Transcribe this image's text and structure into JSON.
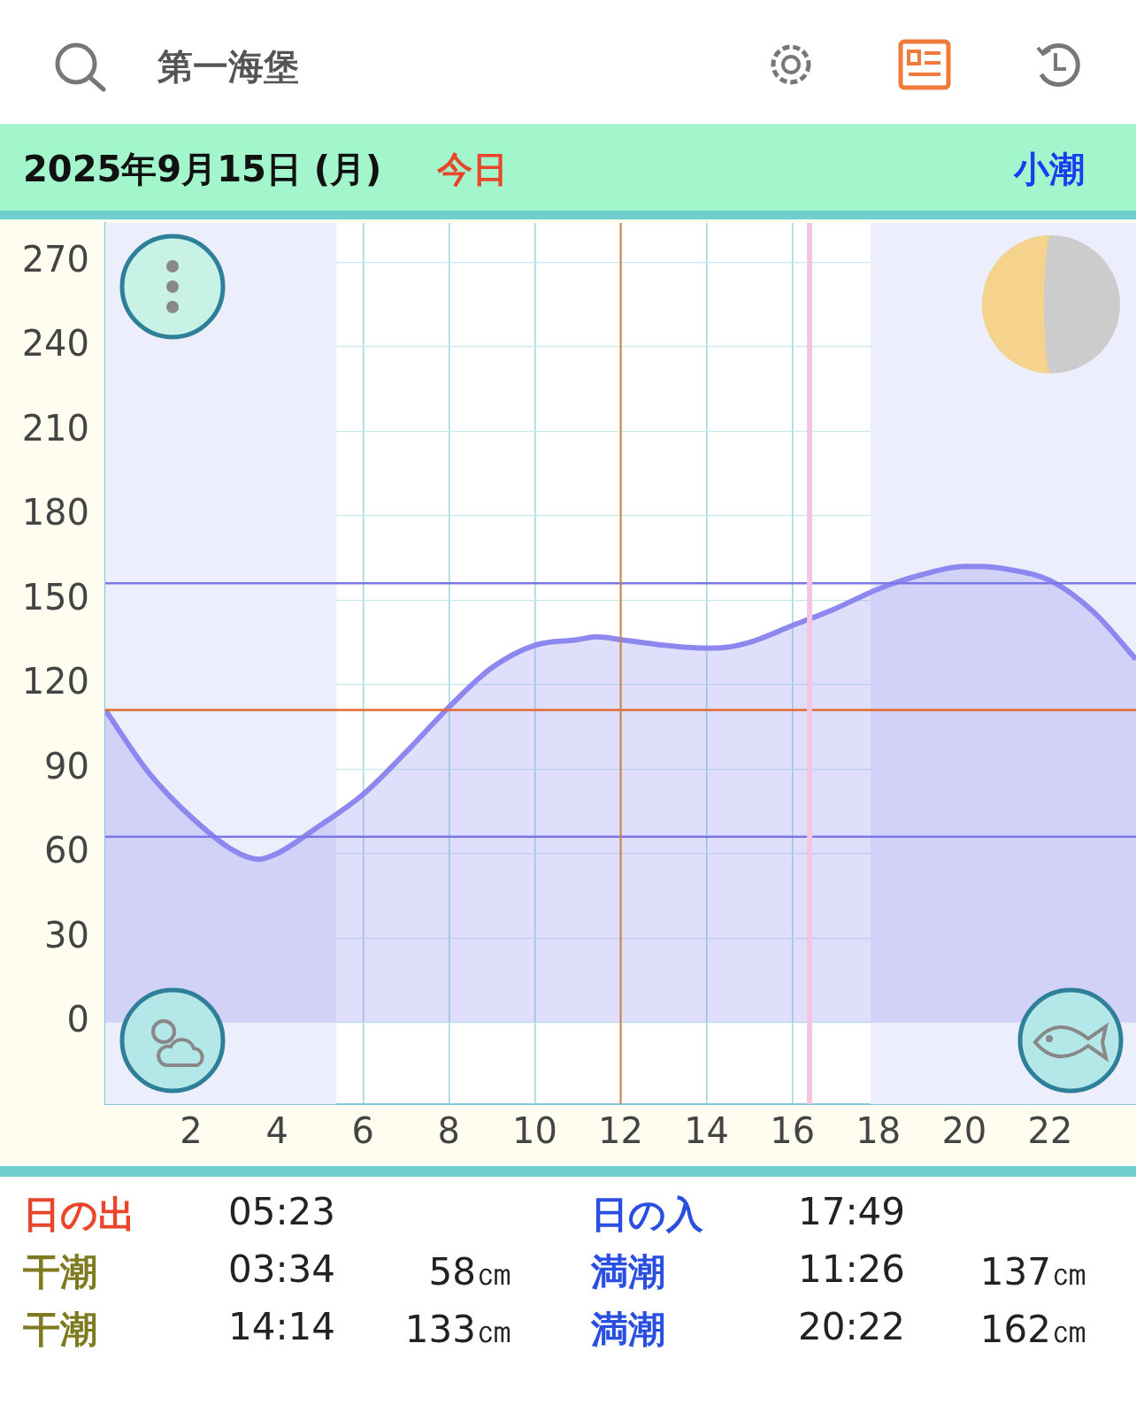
{
  "chart_data": {
    "type": "area",
    "title": "第一海堡",
    "subtitle": "2025年9月15日 (月)",
    "x": [
      0,
      1,
      2,
      3,
      3.567,
      4,
      5,
      6,
      7,
      8,
      9,
      10,
      11,
      11.433,
      12,
      13,
      14,
      14.233,
      15,
      16,
      17,
      18,
      19,
      20,
      20.367,
      21,
      22,
      23,
      24
    ],
    "series": [
      {
        "color": "#8c88f0",
        "values": [
          111,
          89,
          73,
          61,
          58,
          60,
          70,
          81,
          96,
          112,
          126,
          134,
          136,
          137,
          136,
          134,
          133,
          133,
          135,
          141,
          147,
          154,
          159,
          162,
          162,
          161,
          157,
          146,
          129
        ]
      }
    ],
    "xlim": [
      0,
      24
    ],
    "xticks": [
      2,
      4,
      6,
      8,
      10,
      12,
      14,
      16,
      18,
      20,
      22
    ],
    "ylim": [
      -29,
      284
    ],
    "yticks": [
      0,
      30,
      60,
      90,
      120,
      150,
      180,
      210,
      240,
      270
    ],
    "grid": true,
    "legend": false,
    "marker": "none",
    "line_style": "solid",
    "ref_lines": [
      {
        "axis": "y",
        "value": 111,
        "color": "#e06a30"
      },
      {
        "axis": "y",
        "value": 156,
        "color": "#7a78e8"
      },
      {
        "axis": "y",
        "value": 66,
        "color": "#7a78e8"
      },
      {
        "axis": "x",
        "value": 12,
        "color": "#d08040"
      },
      {
        "axis": "x",
        "value": 16.4,
        "color": "#f2c6e2"
      }
    ],
    "bands": [
      {
        "axis": "x",
        "from": 0,
        "to": 5.383,
        "color": "#eceefc"
      },
      {
        "axis": "x",
        "from": 17.817,
        "to": 24,
        "color": "#eceefc"
      }
    ],
    "annotations": [
      "今日",
      "小潮",
      "日の出",
      "05:23",
      "日の入",
      "17:49",
      "干潮",
      "03:34",
      "58㎝",
      "満潮",
      "11:26",
      "137㎝",
      "干潮",
      "14:14",
      "133㎝",
      "満潮",
      "20:22",
      "162㎝"
    ]
  }
}
